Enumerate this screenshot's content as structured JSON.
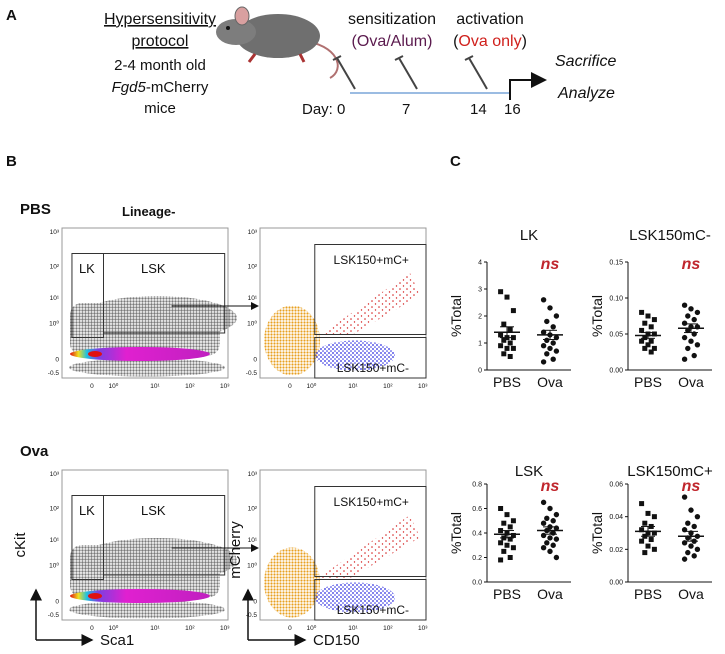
{
  "panel_a": {
    "label": "A",
    "protocol": {
      "title_line1": "Hypersensitivity",
      "title_line2": "protocol",
      "line3": "2-4 month old",
      "gene": "Fgd5",
      "line4_rest": "-mCherry",
      "line5": "mice"
    },
    "sensitization": {
      "title": "sensitization",
      "agent": "(Ova/Alum)"
    },
    "activation": {
      "title": "activation",
      "open": "(",
      "agent": "Ova only",
      "close": ")"
    },
    "timeline": {
      "days": [
        "Day: 0",
        "7",
        "14",
        "16"
      ]
    },
    "outcomes": [
      "Sacrifice",
      "Analyze"
    ]
  },
  "panel_b": {
    "label": "B",
    "conditions": [
      "PBS",
      "Ova"
    ],
    "gate_title": "Lineage-",
    "gates_left": [
      "LK",
      "LSK"
    ],
    "gates_right": [
      "LSK150+mC+",
      "LSK150+mC-"
    ],
    "flow_yticks": [
      "10³",
      "10²",
      "10¹",
      "10⁰",
      "0",
      "-0.5"
    ],
    "flow_xticks": [
      "0",
      "10⁰",
      "10¹",
      "10²",
      "10³"
    ],
    "axes": {
      "left_y": "cKit",
      "left_x": "Sca1",
      "right_y": "mCherry",
      "right_x": "CD150"
    }
  },
  "panel_c": {
    "label": "C"
  },
  "chart_data": [
    {
      "type": "strip",
      "title": "LK",
      "y_label": "%Total",
      "categories": [
        "PBS",
        "Ova"
      ],
      "markers": [
        "square",
        "circle"
      ],
      "color": "#111111",
      "groups": [
        {
          "values": [
            2.9,
            2.7,
            2.2,
            1.7,
            1.5,
            1.3,
            1.2,
            1.2,
            1.1,
            1.0,
            0.9,
            0.8,
            0.8,
            0.6,
            0.5
          ],
          "mean": 1.4,
          "sem": 0.2
        },
        {
          "values": [
            2.6,
            2.3,
            2.0,
            1.8,
            1.6,
            1.4,
            1.3,
            1.2,
            1.1,
            1.0,
            0.9,
            0.8,
            0.7,
            0.6,
            0.4,
            0.3
          ],
          "mean": 1.3,
          "sem": 0.17
        }
      ],
      "ylim": [
        0,
        4
      ],
      "yticks": [
        0,
        1,
        2,
        3,
        4
      ],
      "annotation": "ns",
      "annotation_color": "#c0262d"
    },
    {
      "type": "strip",
      "title": "LSK150mC-",
      "y_label": "%Total",
      "categories": [
        "PBS",
        "Ova"
      ],
      "markers": [
        "square",
        "circle"
      ],
      "color": "#111111",
      "groups": [
        {
          "values": [
            0.08,
            0.075,
            0.07,
            0.065,
            0.06,
            0.055,
            0.05,
            0.05,
            0.045,
            0.04,
            0.04,
            0.035,
            0.03,
            0.03,
            0.025
          ],
          "mean": 0.048,
          "sem": 0.004
        },
        {
          "values": [
            0.09,
            0.085,
            0.08,
            0.075,
            0.07,
            0.065,
            0.06,
            0.06,
            0.055,
            0.05,
            0.045,
            0.04,
            0.035,
            0.03,
            0.02,
            0.015
          ],
          "mean": 0.058,
          "sem": 0.006
        }
      ],
      "ylim": [
        0,
        0.15
      ],
      "yticks": [
        {
          "value": 0,
          "label": "0.00"
        },
        0.05,
        {
          "value": 0.1,
          "label": "0.10"
        },
        0.15
      ],
      "annotation": "ns",
      "annotation_color": "#c0262d"
    },
    {
      "type": "strip",
      "title": "LSK",
      "y_label": "%Total",
      "categories": [
        "PBS",
        "Ova"
      ],
      "markers": [
        "square",
        "circle"
      ],
      "color": "#111111",
      "groups": [
        {
          "values": [
            0.6,
            0.55,
            0.5,
            0.48,
            0.45,
            0.42,
            0.4,
            0.38,
            0.36,
            0.35,
            0.32,
            0.3,
            0.28,
            0.25,
            0.2,
            0.18
          ],
          "mean": 0.39,
          "sem": 0.03
        },
        {
          "values": [
            0.65,
            0.6,
            0.55,
            0.52,
            0.5,
            0.48,
            0.45,
            0.44,
            0.42,
            0.4,
            0.38,
            0.36,
            0.35,
            0.32,
            0.3,
            0.28,
            0.25,
            0.2
          ],
          "mean": 0.42,
          "sem": 0.03
        }
      ],
      "ylim": [
        0,
        0.8
      ],
      "yticks": [
        {
          "value": 0,
          "label": "0.0"
        },
        0.2,
        0.4,
        0.6,
        0.8
      ],
      "annotation": "ns",
      "annotation_color": "#c0262d"
    },
    {
      "type": "strip",
      "title": "LSK150mC+",
      "y_label": "%Total",
      "categories": [
        "PBS",
        "Ova"
      ],
      "markers": [
        "square",
        "circle"
      ],
      "color": "#111111",
      "groups": [
        {
          "values": [
            0.048,
            0.042,
            0.04,
            0.036,
            0.034,
            0.032,
            0.03,
            0.03,
            0.028,
            0.026,
            0.025,
            0.022,
            0.02,
            0.018
          ],
          "mean": 0.031,
          "sem": 0.003
        },
        {
          "values": [
            0.052,
            0.044,
            0.04,
            0.036,
            0.034,
            0.032,
            0.03,
            0.028,
            0.027,
            0.025,
            0.024,
            0.022,
            0.02,
            0.018,
            0.016,
            0.014
          ],
          "mean": 0.028,
          "sem": 0.003
        }
      ],
      "ylim": [
        0,
        0.06
      ],
      "yticks": [
        {
          "value": 0,
          "label": "0.00"
        },
        0.02,
        0.04,
        0.06
      ],
      "annotation": "ns",
      "annotation_color": "#c0262d"
    }
  ]
}
